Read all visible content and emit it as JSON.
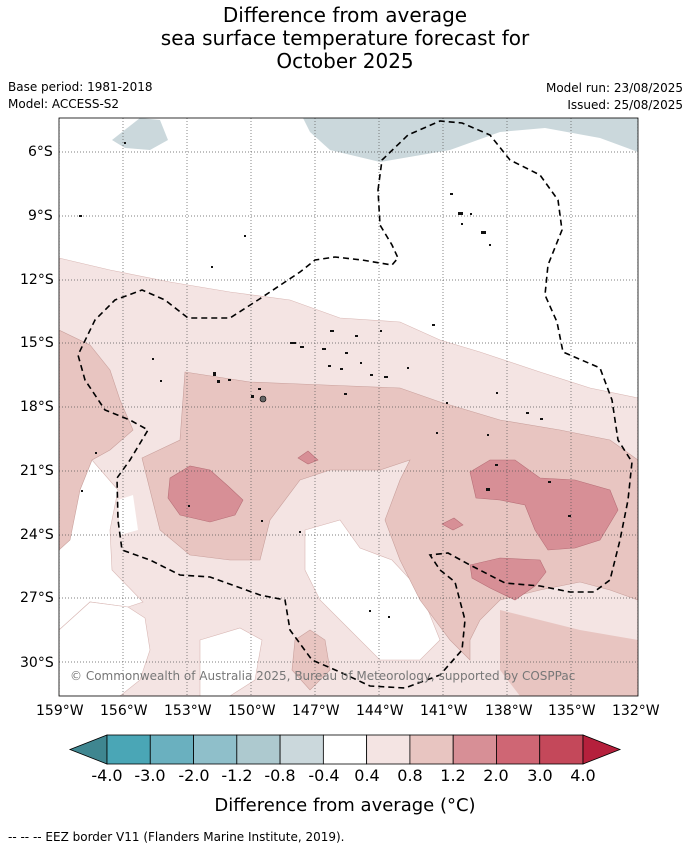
{
  "title": {
    "line1": "Difference from average",
    "line2": "sea surface temperature forecast for",
    "line3": "October 2025"
  },
  "meta": {
    "base_period": "Base period: 1981-2018",
    "model": "Model: ACCESS-S2",
    "model_run": "Model run: 23/08/2025",
    "issued": "Issued: 25/08/2025"
  },
  "map": {
    "lat_ticks": [
      "6°S",
      "9°S",
      "12°S",
      "15°S",
      "18°S",
      "21°S",
      "24°S",
      "27°S",
      "30°S"
    ],
    "lon_ticks": [
      "159°W",
      "156°W",
      "153°W",
      "150°W",
      "147°W",
      "144°W",
      "141°W",
      "138°W",
      "135°W",
      "132°W"
    ],
    "copyright": "© Commonwealth of Australia 2025, Bureau of Meteorology, supported by COSPPac"
  },
  "colorbar": {
    "labels": [
      "-4.0",
      "-3.0",
      "-2.0",
      "-1.2",
      "-0.8",
      "-0.4",
      "0.4",
      "0.8",
      "1.2",
      "2.0",
      "3.0",
      "4.0"
    ],
    "colors": [
      "#3f8690",
      "#4aa6b6",
      "#6ab0bf",
      "#8fbfca",
      "#adc9cf",
      "#cbd8dc",
      "#ffffff",
      "#f4e4e3",
      "#e8c5c1",
      "#d78f96",
      "#cf6674",
      "#c4485a",
      "#b5203c"
    ],
    "title": "Difference from average (°C)"
  },
  "footer": "--  --  -- EEZ border V11 (Flanders Marine Institute, 2019)."
}
